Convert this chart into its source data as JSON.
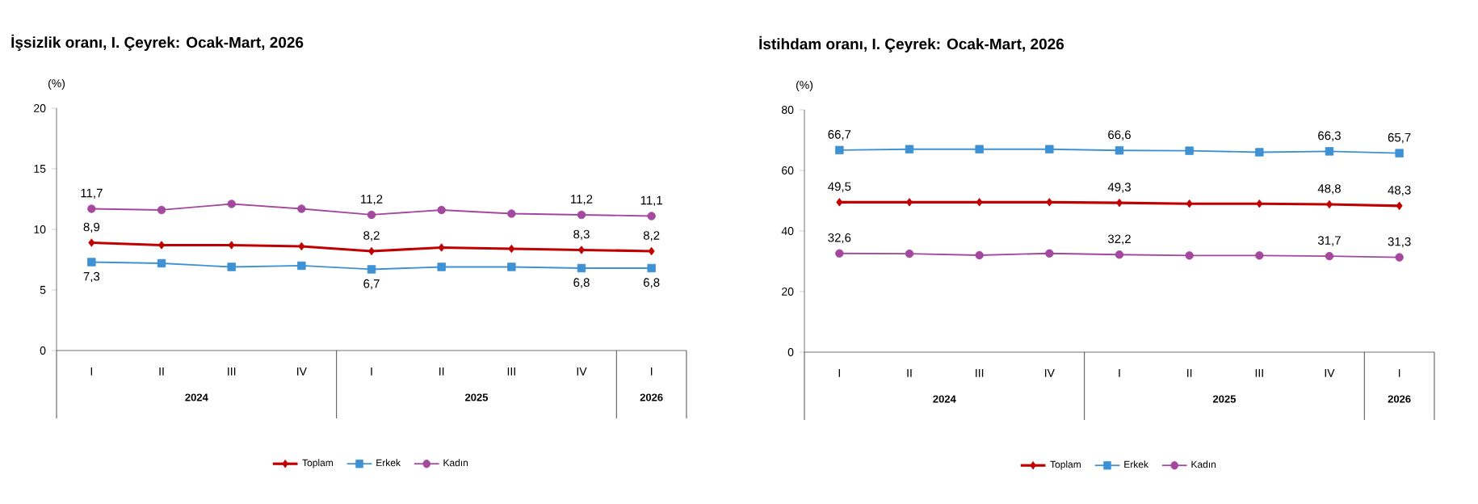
{
  "chart_data": [
    {
      "type": "line",
      "title": "İşsizlik oranı, I. Çeyrek: Ocak-Mart, 2026",
      "ylabel": "(%)",
      "categories": [
        "I",
        "II",
        "III",
        "IV",
        "I",
        "II",
        "III",
        "IV",
        "I"
      ],
      "annotations": [
        "2024",
        "2025",
        "2026"
      ],
      "ylim": [
        0,
        20
      ],
      "yticks": [
        0,
        5,
        10,
        15,
        20
      ],
      "legend": "bottom",
      "series": [
        {
          "name": "Toplam",
          "color": "#c00000",
          "marker": "diamond",
          "values": [
            8.9,
            8.7,
            8.7,
            8.6,
            8.2,
            8.5,
            8.4,
            8.3,
            8.2
          ],
          "value_labels": [
            "8,9",
            null,
            null,
            null,
            "8,2",
            null,
            null,
            "8,3",
            "8,2"
          ]
        },
        {
          "name": "Erkek",
          "color": "#3e91d3",
          "marker": "square",
          "values": [
            7.3,
            7.2,
            6.9,
            7.0,
            6.7,
            6.9,
            6.9,
            6.8,
            6.8
          ],
          "value_labels": [
            "7,3",
            null,
            null,
            null,
            "6,7",
            null,
            null,
            "6,8",
            "6,8"
          ]
        },
        {
          "name": "Kadın",
          "color": "#a3489e",
          "marker": "circle",
          "values": [
            11.7,
            11.6,
            12.1,
            11.7,
            11.2,
            11.6,
            11.3,
            11.2,
            11.1
          ],
          "value_labels": [
            "11,7",
            null,
            null,
            null,
            "11,2",
            null,
            null,
            "11,2",
            "11,1"
          ]
        }
      ]
    },
    {
      "type": "line",
      "title": "İstihdam oranı, I. Çeyrek: Ocak-Mart, 2026",
      "ylabel": "(%)",
      "categories": [
        "I",
        "II",
        "III",
        "IV",
        "I",
        "II",
        "III",
        "IV",
        "I"
      ],
      "annotations": [
        "2024",
        "2025",
        "2026"
      ],
      "ylim": [
        0,
        80
      ],
      "yticks": [
        0,
        20,
        40,
        60,
        80
      ],
      "legend": "bottom",
      "series": [
        {
          "name": "Toplam",
          "color": "#c00000",
          "marker": "diamond",
          "values": [
            49.5,
            49.5,
            49.5,
            49.5,
            49.3,
            49.0,
            49.0,
            48.8,
            48.3
          ],
          "value_labels": [
            "49,5",
            null,
            null,
            null,
            "49,3",
            null,
            null,
            "48,8",
            "48,3"
          ]
        },
        {
          "name": "Erkek",
          "color": "#3e91d3",
          "marker": "square",
          "values": [
            66.7,
            67.0,
            67.0,
            67.0,
            66.6,
            66.5,
            66.0,
            66.3,
            65.7
          ],
          "value_labels": [
            "66,7",
            null,
            null,
            null,
            "66,6",
            null,
            null,
            "66,3",
            "65,7"
          ]
        },
        {
          "name": "Kadın",
          "color": "#a3489e",
          "marker": "circle",
          "values": [
            32.6,
            32.5,
            32.0,
            32.6,
            32.2,
            31.9,
            31.9,
            31.7,
            31.3
          ],
          "value_labels": [
            "32,6",
            null,
            null,
            null,
            "32,2",
            null,
            null,
            "31,7",
            "31,3"
          ]
        }
      ]
    }
  ]
}
